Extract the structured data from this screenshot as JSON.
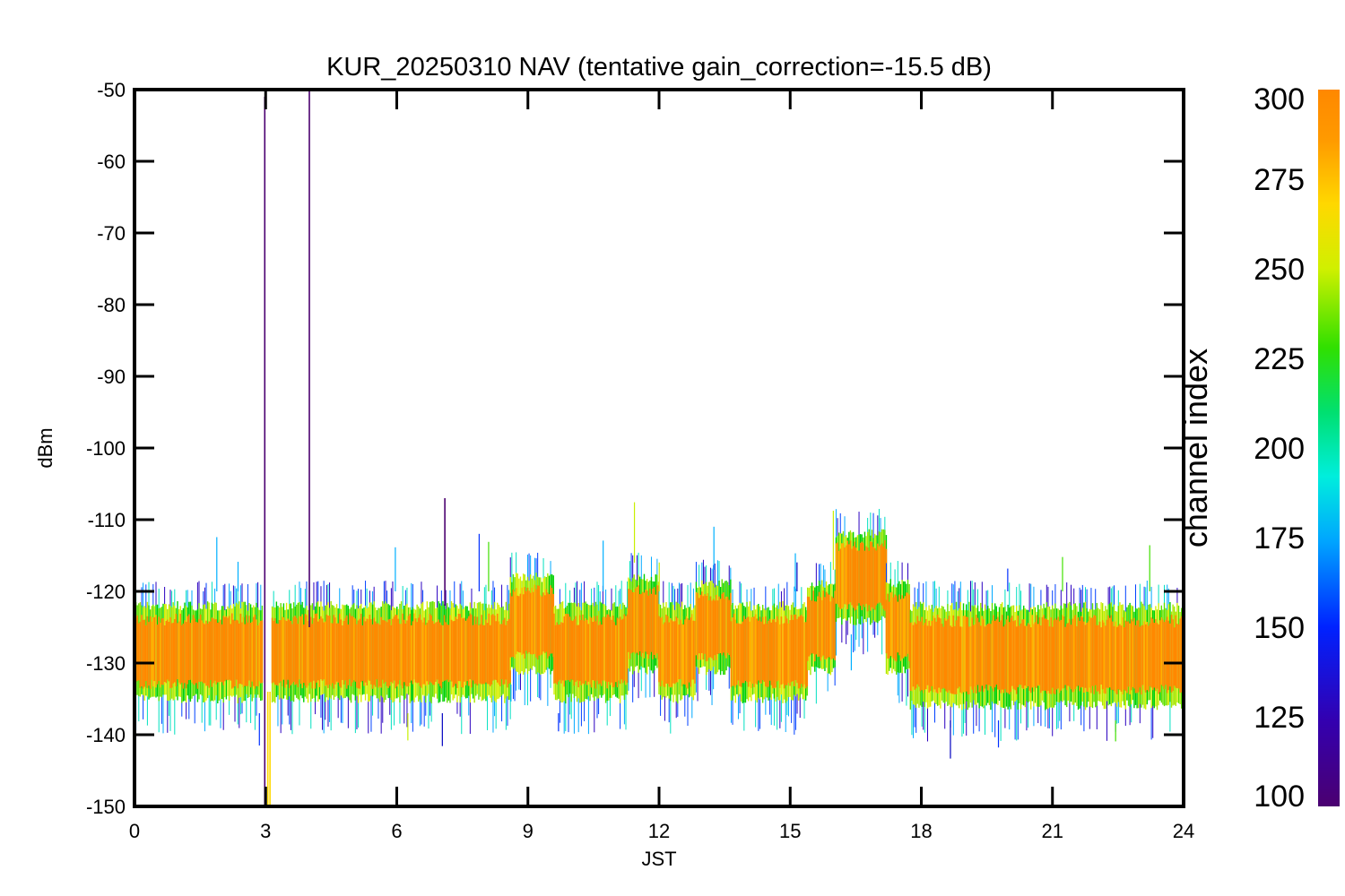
{
  "chart_data": {
    "type": "line",
    "title": "KUR_20250310 NAV (tentative gain_correction=-15.5 dB)",
    "xlabel": "JST",
    "ylabel": "dBm",
    "xlim": [
      0,
      24
    ],
    "ylim": [
      -150,
      -50
    ],
    "x_ticks": [
      "0",
      "3",
      "6",
      "9",
      "12",
      "15",
      "18",
      "21",
      "24"
    ],
    "y_ticks": [
      "-50",
      "-60",
      "-70",
      "-80",
      "-90",
      "-100",
      "-110",
      "-120",
      "-130",
      "-140",
      "-150"
    ],
    "grid": false,
    "colorbar": {
      "label": "channel index",
      "range": [
        100,
        300
      ],
      "ticks": [
        "100",
        "125",
        "150",
        "175",
        "200",
        "225",
        "250",
        "275",
        "300"
      ]
    },
    "segments": [
      {
        "x0": 0.0,
        "x1": 2.95,
        "median": -127,
        "min": -137,
        "max": -120
      },
      {
        "x0": 3.15,
        "x1": 8.6,
        "median": -127,
        "min": -137,
        "max": -120
      },
      {
        "x0": 8.6,
        "x1": 9.6,
        "median": -124,
        "min": -133,
        "max": -116
      },
      {
        "x0": 9.6,
        "x1": 11.3,
        "median": -127,
        "min": -137,
        "max": -120
      },
      {
        "x0": 11.3,
        "x1": 12.0,
        "median": -124,
        "min": -133,
        "max": -116
      },
      {
        "x0": 12.0,
        "x1": 12.85,
        "median": -127,
        "min": -137,
        "max": -120
      },
      {
        "x0": 12.85,
        "x1": 13.65,
        "median": -124,
        "min": -133,
        "max": -117
      },
      {
        "x0": 13.65,
        "x1": 15.4,
        "median": -127,
        "min": -137,
        "max": -120
      },
      {
        "x0": 15.4,
        "x1": 16.05,
        "median": -124,
        "min": -133,
        "max": -117
      },
      {
        "x0": 16.05,
        "x1": 17.2,
        "median": -118,
        "min": -126,
        "max": -110
      },
      {
        "x0": 17.2,
        "x1": 17.75,
        "median": -124,
        "min": -133,
        "max": -117
      },
      {
        "x0": 17.75,
        "x1": 24.0,
        "median": -127,
        "min": -138,
        "max": -120
      }
    ],
    "spikes": [
      {
        "x": 2.98,
        "y_low": -150,
        "y_high": -51,
        "channel": 110
      },
      {
        "x": 4.0,
        "y_low": -125,
        "y_high": -50,
        "channel": 110
      },
      {
        "x": 7.1,
        "y_low": -122,
        "y_high": -107,
        "channel": 120
      },
      {
        "x": 3.05,
        "y_low": -150,
        "y_high": -134,
        "channel": 290
      },
      {
        "x": 3.1,
        "y_low": -150,
        "y_high": -134,
        "channel": 290
      }
    ]
  }
}
